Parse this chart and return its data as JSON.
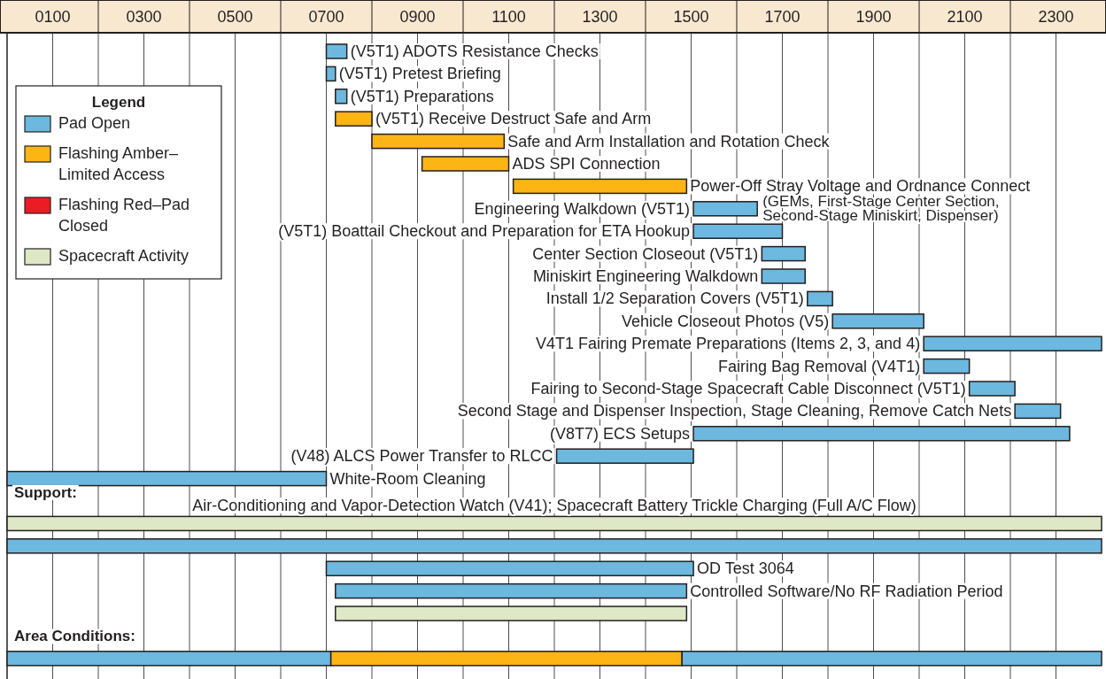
{
  "chart_data": {
    "type": "bar",
    "orientation": "horizontal",
    "legend": "top left",
    "legend_title": "Legend",
    "grid": "x",
    "xlim": [
      0,
      2400
    ],
    "xticks": [
      {
        "value": 100,
        "label": "0100"
      },
      {
        "value": 200,
        "label": null
      },
      {
        "value": 300,
        "label": "0300"
      },
      {
        "value": 400,
        "label": null
      },
      {
        "value": 500,
        "label": "0500"
      },
      {
        "value": 600,
        "label": null
      },
      {
        "value": 700,
        "label": "0700"
      },
      {
        "value": 800,
        "label": null
      },
      {
        "value": 900,
        "label": "0900"
      },
      {
        "value": 1000,
        "label": null
      },
      {
        "value": 1100,
        "label": "1100"
      },
      {
        "value": 1200,
        "label": null
      },
      {
        "value": 1300,
        "label": "1300"
      },
      {
        "value": 1400,
        "label": null
      },
      {
        "value": 1500,
        "label": "1500"
      },
      {
        "value": 1600,
        "label": null
      },
      {
        "value": 1700,
        "label": "1700"
      },
      {
        "value": 1800,
        "label": null
      },
      {
        "value": 1900,
        "label": "1900"
      },
      {
        "value": 2000,
        "label": null
      },
      {
        "value": 2100,
        "label": "2100"
      },
      {
        "value": 2200,
        "label": null
      },
      {
        "value": 2300,
        "label": "2300"
      }
    ],
    "categories": [
      "(V5T1) ADOTS Resistance Checks",
      "(V5T1) Pretest Briefing",
      "(V5T1) Preparations",
      "(V5T1) Receive Destruct Safe and Arm",
      "Safe and Arm Installation and Rotation Check",
      "ADS SPI Connection",
      "Power-Off Stray Voltage and Ordnance Connect",
      "Engineering Walkdown (V5T1)",
      "(V5T1) Boattail Checkout and Preparation for ETA Hookup",
      "Center Section Closeout (V5T1)",
      "Miniskirt Engineering Walkdown",
      "Install 1/2 Separation Covers (V5T1)",
      "Vehicle Closeout Photos (V5)",
      "V4T1 Fairing Premate Preparations (Items 2, 3, and 4)",
      "Fairing Bag Removal (V4T1)",
      "Fairing to Second-Stage Spacecraft Cable Disconnect (V5T1)",
      "Second Stage and Dispenser Inspection, Stage Cleaning, Remove Catch Nets",
      "(V8T7) ECS Setups",
      "(V48) ALCS Power Transfer to RLCC",
      "White-Room Cleaning",
      null,
      null,
      null,
      "OD Test 3064",
      "Controlled Software/No RF Radiation Period",
      null,
      null,
      null
    ],
    "series": [
      {
        "name": "Pad Open",
        "color": "#6cb8df",
        "base": [
          700,
          700,
          720,
          null,
          null,
          null,
          null,
          1505,
          1505,
          1655,
          1655,
          1755,
          1810,
          2010,
          2010,
          2110,
          2210,
          1505,
          1205,
          0,
          null,
          null,
          0,
          700,
          720,
          null,
          null,
          0
        ],
        "values": [
          45,
          20,
          25,
          null,
          null,
          null,
          null,
          140,
          195,
          95,
          95,
          55,
          200,
          390,
          100,
          100,
          100,
          825,
          300,
          700,
          null,
          null,
          2400,
          805,
          770,
          null,
          null,
          710
        ]
      },
      {
        "name": "Flashing Amber–Limited Access",
        "color": "#fdb515",
        "base": [
          null,
          null,
          null,
          720,
          800,
          910,
          1110,
          null,
          null,
          null,
          null,
          null,
          null,
          null,
          null,
          null,
          null,
          null,
          null,
          null,
          null,
          null,
          null,
          null,
          null,
          null,
          null,
          710
        ],
        "values": [
          null,
          null,
          null,
          80,
          290,
          190,
          380,
          null,
          null,
          null,
          null,
          null,
          null,
          null,
          null,
          null,
          null,
          null,
          null,
          null,
          null,
          null,
          null,
          null,
          null,
          null,
          null,
          770
        ]
      },
      {
        "name": "Flashing Red–Pad Closed",
        "color": "#ed1c24",
        "base": [
          null,
          null,
          null,
          null,
          null,
          null,
          null,
          null,
          null,
          null,
          null,
          null,
          null,
          null,
          null,
          null,
          null,
          null,
          null,
          null,
          null,
          null,
          null,
          null,
          null,
          null,
          null,
          null
        ],
        "values": [
          null,
          null,
          null,
          null,
          null,
          null,
          null,
          null,
          null,
          null,
          null,
          null,
          null,
          null,
          null,
          null,
          null,
          null,
          null,
          null,
          null,
          null,
          null,
          null,
          null,
          null,
          null,
          null
        ]
      },
      {
        "name": "Spacecraft Activity",
        "color": "#dfe8c6",
        "base": [
          null,
          null,
          null,
          null,
          null,
          null,
          null,
          null,
          null,
          null,
          null,
          null,
          null,
          null,
          null,
          null,
          null,
          null,
          null,
          null,
          null,
          0,
          null,
          null,
          null,
          720,
          null,
          null
        ],
        "values": [
          null,
          null,
          null,
          null,
          null,
          null,
          null,
          null,
          null,
          null,
          null,
          null,
          null,
          null,
          null,
          null,
          null,
          null,
          null,
          null,
          null,
          2400,
          null,
          null,
          null,
          770,
          null,
          null
        ]
      },
      {
        "color": "#6cb8df",
        "base": [
          null,
          null,
          null,
          null,
          null,
          null,
          null,
          null,
          null,
          null,
          null,
          null,
          null,
          null,
          null,
          null,
          null,
          null,
          null,
          null,
          null,
          null,
          null,
          null,
          null,
          null,
          null,
          1480
        ],
        "values": [
          null,
          null,
          null,
          null,
          null,
          null,
          null,
          null,
          null,
          null,
          null,
          null,
          null,
          null,
          null,
          null,
          null,
          null,
          null,
          null,
          null,
          null,
          null,
          null,
          null,
          null,
          null,
          920
        ]
      }
    ],
    "annotations": [
      "Support:",
      "Air-Conditioning and Vapor-Detection Watch (V41); Spacecraft Battery Trickle Charging (Full A/C Flow)",
      "Area Conditions:",
      {
        "text": "(GEMs, First-Stage Center Section, Second-Stage Miniskirt, Dispenser)",
        "x": 1645,
        "y": "Engineering Walkdown (V5T1)"
      }
    ]
  }
}
